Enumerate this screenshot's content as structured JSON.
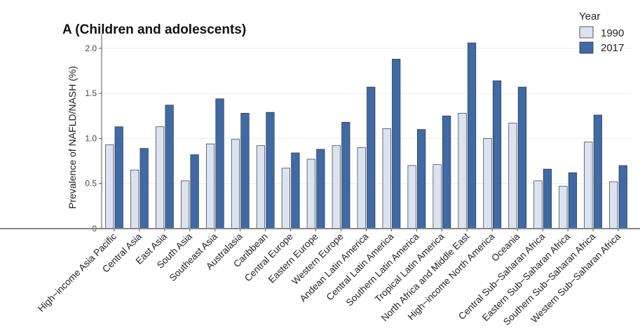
{
  "chart_data": {
    "type": "bar",
    "title": "A (Children and adolescents)",
    "xlabel": "",
    "ylabel": "Prevalence of NAFLD/NASH (%)",
    "ylim": [
      0,
      2.1
    ],
    "yticks": [
      "0",
      "0.5",
      "1.0",
      "1.5",
      "2.0"
    ],
    "ytick_values": [
      0,
      0.5,
      1.0,
      1.5,
      2.0
    ],
    "grid": true,
    "legend": {
      "title": "Year",
      "position": "top-right"
    },
    "categories": [
      "High−income Asia Pacific",
      "Central Asia",
      "East Asia",
      "South Asia",
      "Southeast Asia",
      "Australasia",
      "Caribbean",
      "Central Europe",
      "Eastern Europe",
      "Western Europe",
      "Andean Latin America",
      "Central Latin America",
      "Southern Latin America",
      "Tropical Latin America",
      "North Africa and Middle East",
      "High−income North America",
      "Oceania",
      "Central Sub−Saharan Africa",
      "Eastern Sub−Saharan Africa",
      "Southern Sub−Saharan Africa",
      "Western Sub−Saharan Africa"
    ],
    "series": [
      {
        "name": "1990",
        "color": "#dce3f0",
        "values": [
          0.93,
          0.65,
          1.13,
          0.53,
          0.94,
          0.99,
          0.92,
          0.67,
          0.77,
          0.92,
          0.9,
          1.11,
          0.7,
          0.71,
          1.28,
          1.0,
          1.17,
          0.53,
          0.47,
          0.96,
          0.52
        ]
      },
      {
        "name": "2017",
        "color": "#3e6aa8",
        "values": [
          1.13,
          0.89,
          1.37,
          0.82,
          1.44,
          1.28,
          1.29,
          0.84,
          0.88,
          1.18,
          1.57,
          1.88,
          1.1,
          1.25,
          2.06,
          1.64,
          1.57,
          0.66,
          0.62,
          1.26,
          0.7
        ]
      }
    ]
  }
}
